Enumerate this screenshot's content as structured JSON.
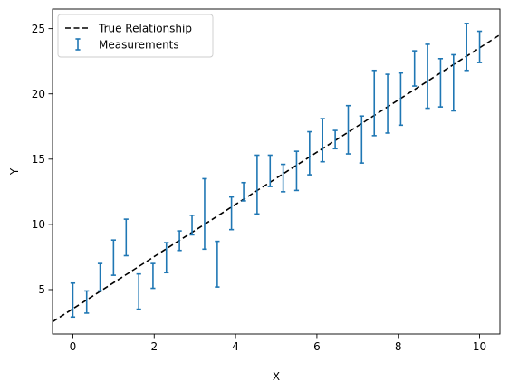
{
  "chart_data": {
    "type": "errorbar",
    "xlabel": "X",
    "ylabel": "Y",
    "xlim": [
      -0.5,
      10.5
    ],
    "ylim": [
      1.6,
      26.5
    ],
    "xticks": [
      0,
      2,
      4,
      6,
      8,
      10
    ],
    "yticks": [
      5,
      10,
      15,
      20,
      25
    ],
    "grid": false,
    "legend_position": "top-left",
    "colors": {
      "measurements": "#1f77b4",
      "true_line": "#000000"
    },
    "true_relationship": {
      "name": "True Relationship",
      "x": [
        -0.5,
        10.5
      ],
      "y": [
        2.53,
        24.53
      ],
      "style": "dashed"
    },
    "measurements": {
      "name": "Measurements",
      "points": [
        {
          "x": 0.0,
          "low": 2.9,
          "high": 5.5
        },
        {
          "x": 0.34,
          "low": 3.2,
          "high": 4.9
        },
        {
          "x": 0.67,
          "low": 4.9,
          "high": 7.0
        },
        {
          "x": 1.0,
          "low": 6.1,
          "high": 8.8
        },
        {
          "x": 1.31,
          "low": 7.6,
          "high": 10.4
        },
        {
          "x": 1.62,
          "low": 3.5,
          "high": 6.2
        },
        {
          "x": 1.97,
          "low": 5.1,
          "high": 7.0
        },
        {
          "x": 2.3,
          "low": 6.3,
          "high": 8.6
        },
        {
          "x": 2.62,
          "low": 8.0,
          "high": 9.5
        },
        {
          "x": 2.93,
          "low": 9.2,
          "high": 10.7
        },
        {
          "x": 3.24,
          "low": 8.1,
          "high": 13.5
        },
        {
          "x": 3.55,
          "low": 5.2,
          "high": 8.7
        },
        {
          "x": 3.9,
          "low": 9.6,
          "high": 12.1
        },
        {
          "x": 4.2,
          "low": 11.8,
          "high": 13.2
        },
        {
          "x": 4.53,
          "low": 10.8,
          "high": 15.3
        },
        {
          "x": 4.85,
          "low": 12.9,
          "high": 15.3
        },
        {
          "x": 5.17,
          "low": 12.5,
          "high": 14.6
        },
        {
          "x": 5.5,
          "low": 12.6,
          "high": 15.6
        },
        {
          "x": 5.82,
          "low": 13.8,
          "high": 17.1
        },
        {
          "x": 6.14,
          "low": 14.8,
          "high": 18.1
        },
        {
          "x": 6.45,
          "low": 15.8,
          "high": 17.2
        },
        {
          "x": 6.77,
          "low": 15.4,
          "high": 19.1
        },
        {
          "x": 7.1,
          "low": 14.7,
          "high": 18.3
        },
        {
          "x": 7.41,
          "low": 16.8,
          "high": 21.8
        },
        {
          "x": 7.74,
          "low": 17.0,
          "high": 21.5
        },
        {
          "x": 8.06,
          "low": 17.6,
          "high": 21.6
        },
        {
          "x": 8.4,
          "low": 20.6,
          "high": 23.3
        },
        {
          "x": 8.72,
          "low": 18.9,
          "high": 23.8
        },
        {
          "x": 9.04,
          "low": 19.0,
          "high": 22.7
        },
        {
          "x": 9.36,
          "low": 18.7,
          "high": 23.0
        },
        {
          "x": 9.68,
          "low": 21.8,
          "high": 25.4
        },
        {
          "x": 10.0,
          "low": 22.4,
          "high": 24.8
        }
      ]
    }
  }
}
